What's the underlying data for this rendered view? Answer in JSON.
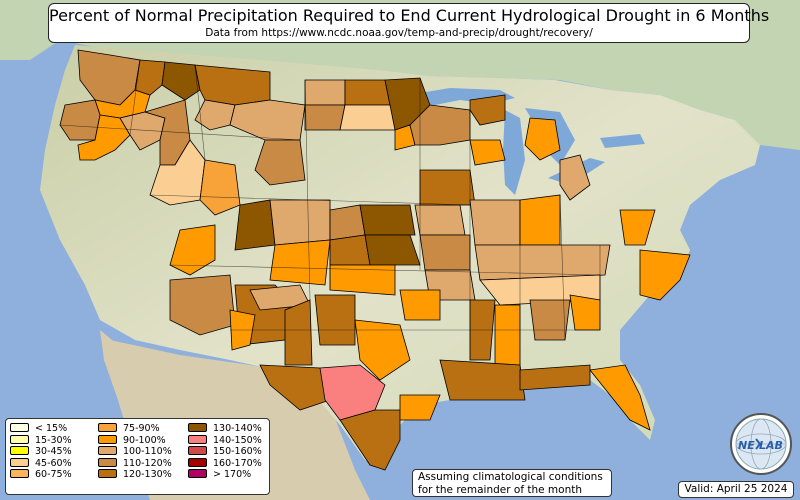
{
  "header": {
    "title": "Percent of Normal Precipitation Required to End Current Hydrological Drought in 6 Months",
    "subtitle": "Data from https://www.ncdc.noaa.gov/temp-and-precip/drought/recovery/"
  },
  "legend": {
    "items": [
      {
        "label": "< 15%",
        "color": "#ffffe6"
      },
      {
        "label": "15-30%",
        "color": "#ffffb0"
      },
      {
        "label": "30-45%",
        "color": "#ffff00"
      },
      {
        "label": "45-60%",
        "color": "#fbcf94"
      },
      {
        "label": "60-75%",
        "color": "#fbb45c"
      },
      {
        "label": "75-90%",
        "color": "#f8a23a"
      },
      {
        "label": "90-100%",
        "color": "#ff9a00"
      },
      {
        "label": "100-110%",
        "color": "#dfa96e"
      },
      {
        "label": "110-120%",
        "color": "#c88a45"
      },
      {
        "label": "120-130%",
        "color": "#b87013"
      },
      {
        "label": "130-140%",
        "color": "#8c5700"
      },
      {
        "label": "140-150%",
        "color": "#fa8080"
      },
      {
        "label": "150-160%",
        "color": "#d14a4a"
      },
      {
        "label": "160-170%",
        "color": "#a50000"
      },
      {
        "label": "> 170%",
        "color": "#b00060"
      }
    ]
  },
  "notes": {
    "assumption": "Assuming climatological conditions for the remainder of the month",
    "valid": "Valid: April 25 2024"
  },
  "logo": {
    "text_left": "NE",
    "text_right": "LAB"
  },
  "colors": {
    "ocean": "#8fb0dc",
    "land": "#d8ddc4",
    "canada": "#c2d4b2",
    "mexico": "#d7ccae",
    "lakes": "#7ea8d8"
  }
}
